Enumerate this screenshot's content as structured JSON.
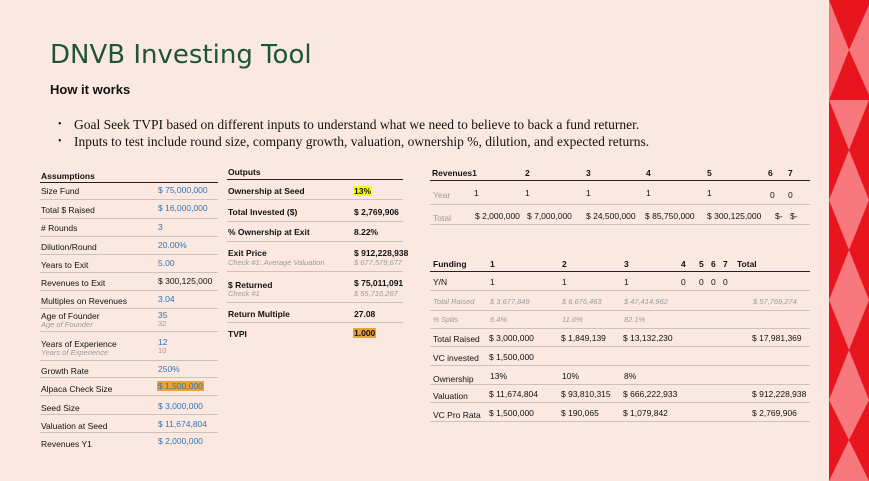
{
  "header": {
    "title": "DNVB Investing Tool",
    "subtitle": "How it works"
  },
  "bullets": [
    "Goal Seek TVPI based on different inputs to understand what we need to believe to back a fund returner.",
    "Inputs to test include round size, company growth, valuation, ownership %, dilution, and expected returns."
  ],
  "assumptions": {
    "header": "Assumptions",
    "rows": [
      {
        "label": "Size Fund",
        "value": "$ 75,000,000"
      },
      {
        "label": "Total $ Raised",
        "value": "$ 16,000,000"
      },
      {
        "label": "# Rounds",
        "value": "3"
      },
      {
        "label": "Dilution/Round",
        "value": "20.00%"
      },
      {
        "label": "Years to Exit",
        "value": "5.00"
      },
      {
        "label": "Revenues to Exit",
        "value": "$ 300,125,000"
      },
      {
        "label": "Multiples on Revenues",
        "value": "3.04"
      },
      {
        "label": "Age of Founder",
        "sublabel": "Age of Founder",
        "value": "35",
        "subvalue": "32"
      },
      {
        "label": "Years of Experience",
        "sublabel": "Years of Experience",
        "value": "12",
        "subvalue": "10"
      },
      {
        "label": "Growth Rate",
        "value": "250%"
      },
      {
        "label": "Alpaca Check Size",
        "value": "$ 1,500,000"
      },
      {
        "label": "Seed Size",
        "value": "$ 3,000,000"
      },
      {
        "label": "Valuation at Seed",
        "value": "$ 11,674,804"
      },
      {
        "label": "Revenues Y1",
        "value": "$ 2,000,000"
      }
    ]
  },
  "outputs": {
    "header": "Outputs",
    "rows": [
      {
        "label": "Ownership at Seed",
        "value": "13%"
      },
      {
        "label": "Total Invested ($)",
        "value": "$ 2,769,906"
      },
      {
        "label": "% Ownership at Exit",
        "value": "8.22%"
      },
      {
        "label": "Exit Price",
        "sublabel": "Check #1: Average Valuation",
        "value": "$ 912,228,938",
        "subvalue": "$ 677,579,677"
      },
      {
        "label": "$ Returned",
        "sublabel": "Check #1",
        "value": "$ 75,011,091",
        "subvalue": "$ 55,716,267"
      },
      {
        "label": "Return Multiple",
        "value": "27.08"
      },
      {
        "label": "TVPI",
        "value": "1.000"
      }
    ]
  },
  "revenues": {
    "header": "Revenues1",
    "cols": [
      "2",
      "3",
      "4",
      "5",
      "6",
      "7"
    ],
    "year_label": "Year",
    "year_values": [
      "1",
      "1",
      "1",
      "1",
      "1",
      "0",
      "0"
    ],
    "total_label": "Total",
    "total_values": [
      "$ 2,000,000",
      "$ 7,000,000",
      "$ 24,500,000",
      "$ 85,750,000",
      "$ 300,125,000",
      "$-",
      "$-"
    ]
  },
  "funding": {
    "header": "Funding",
    "cols": [
      "1",
      "2",
      "3",
      "4",
      "5",
      "6",
      "7",
      "Total"
    ],
    "yn_label": "Y/N",
    "yn_values": [
      "1",
      "1",
      "1",
      "0",
      "0",
      "0",
      "0"
    ],
    "total_raised_it_label": "Total Raised",
    "total_raised_it": [
      "$ 3,677,849",
      "$ 6,676,463",
      "$ 47,414,962",
      "$ 57,769,274"
    ],
    "splits_label": "% Splits",
    "splits": [
      "6.4%",
      "11.6%",
      "82.1%"
    ],
    "total_raised_label": "Total Raised",
    "total_raised": [
      "$ 3,000,000",
      "$ 1,849,139",
      "$ 13,132,230",
      "$ 17,981,369"
    ],
    "vc_invested_label": "VC invested",
    "vc_invested": "$ 1,500,000",
    "ownership_label": "Ownership",
    "ownership": [
      "13%",
      "10%",
      "8%"
    ],
    "valuation_label": "Valuation",
    "valuation": [
      "$ 11,674,804",
      "$ 93,810,315",
      "$ 666,222,933",
      "$ 912,228,938"
    ],
    "vc_pro_rata_label": "VC Pro Rata",
    "vc_pro_rata": [
      "$ 1,500,000",
      "$ 190,065",
      "$ 1,079,842",
      "$ 2,769,906"
    ]
  },
  "colors": {
    "background": "#fbe9e1",
    "title": "#1e5631",
    "accent_red": "#e8141e",
    "highlight_yellow": "#ffff00",
    "highlight_orange": "#e6a23c",
    "value_blue": "#2e75b6"
  }
}
